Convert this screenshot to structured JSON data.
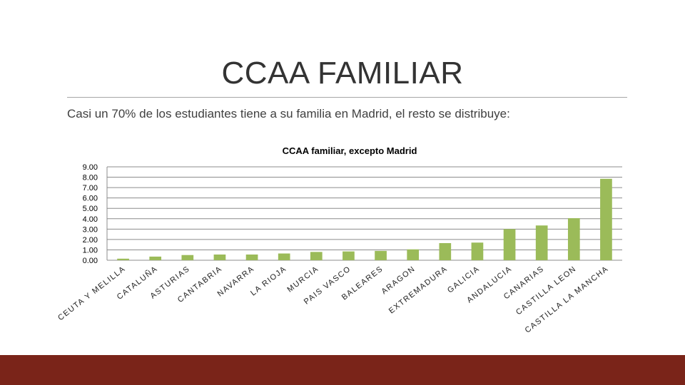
{
  "slide": {
    "title": "CCAA FAMILIAR",
    "subtitle": "Casi un 70% de los estudiantes tiene a su familia en Madrid, el resto se distribuye:"
  },
  "colors": {
    "bar": "#9bbb59",
    "footer": "#7a2419"
  },
  "chart_data": {
    "type": "bar",
    "title": "CCAA familiar, excepto Madrid",
    "categories": [
      "CEUTA Y MELILLA",
      "CATALUÑA",
      "ASTURIAS",
      "CANTABRIA",
      "NAVARRA",
      "LA RIOJA",
      "MURCIA",
      "PAIS VASCO",
      "BALEARES",
      "ARAGON",
      "EXTREMADURA",
      "GALICIA",
      "ANDALUCIA",
      "CANARIAS",
      "CASTILLA LEON",
      "CASTILLA LA MANCHA"
    ],
    "values": [
      0.15,
      0.35,
      0.5,
      0.55,
      0.55,
      0.65,
      0.8,
      0.85,
      0.9,
      1.05,
      1.65,
      1.7,
      3.0,
      3.35,
      4.05,
      7.85
    ],
    "yticks": [
      "0.00",
      "1.00",
      "2.00",
      "3.00",
      "4.00",
      "5.00",
      "6.00",
      "7.00",
      "8.00",
      "9.00"
    ],
    "ylim": [
      0,
      9
    ],
    "grid": true,
    "legend": "none"
  }
}
